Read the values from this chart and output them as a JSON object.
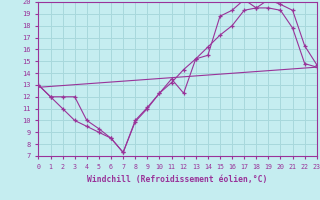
{
  "xlabel": "Windchill (Refroidissement éolien,°C)",
  "background_color": "#c5edf0",
  "grid_color": "#a8d8dc",
  "line_color": "#993399",
  "xmin": 0,
  "xmax": 23,
  "ymin": 7,
  "ymax": 20,
  "curve1_x": [
    0,
    1,
    2,
    3,
    4,
    5,
    6,
    7,
    8,
    9,
    10,
    11,
    12,
    13,
    14,
    15,
    16,
    17,
    18,
    19,
    20,
    21,
    22,
    23
  ],
  "curve1_y": [
    13,
    12,
    12,
    12,
    10,
    9.3,
    8.5,
    7.3,
    9.9,
    11.0,
    12.3,
    13.2,
    14.3,
    15.2,
    16.2,
    17.2,
    18.0,
    19.3,
    19.5,
    19.5,
    19.3,
    17.8,
    14.8,
    14.5
  ],
  "curve2_x": [
    0,
    1,
    2,
    3,
    4,
    5,
    6,
    7,
    8,
    9,
    10,
    11,
    12,
    13,
    14,
    15,
    16,
    17,
    18,
    19,
    20,
    21,
    22,
    23
  ],
  "curve2_y": [
    13,
    12,
    11,
    10,
    9.5,
    9.0,
    8.5,
    7.3,
    10.0,
    11.1,
    12.3,
    13.5,
    12.3,
    15.2,
    15.5,
    18.8,
    19.3,
    20.2,
    19.5,
    20.2,
    19.8,
    19.3,
    16.3,
    14.7
  ],
  "line3_x": [
    0,
    23
  ],
  "line3_y": [
    12.8,
    14.5
  ],
  "xticks": [
    0,
    1,
    2,
    3,
    4,
    5,
    6,
    7,
    8,
    9,
    10,
    11,
    12,
    13,
    14,
    15,
    16,
    17,
    18,
    19,
    20,
    21,
    22,
    23
  ],
  "yticks": [
    7,
    8,
    9,
    10,
    11,
    12,
    13,
    14,
    15,
    16,
    17,
    18,
    19,
    20
  ]
}
